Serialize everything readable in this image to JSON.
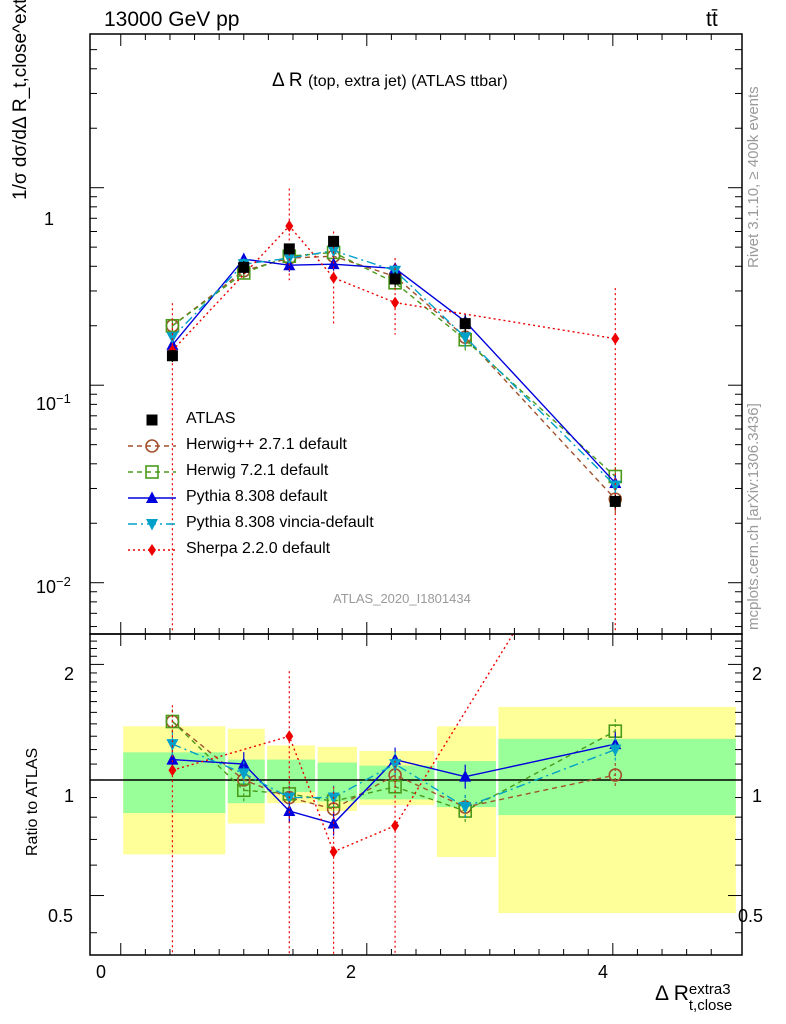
{
  "header": {
    "energy_label": "13000 GeV pp",
    "process_label": "tt̄",
    "analysis_id": "ATLAS_2020_I1801434",
    "rivet_label": "Rivet 3.1.10, ≥ 400k events",
    "mcplots_label": "mcplots.cern.ch [arXiv:1306.3436]"
  },
  "chart_data": {
    "type": "line",
    "title": "Δ R (top, extra jet) (ATLAS ttbar)",
    "title_main": "Δ R",
    "title_rest": "(top, extra jet) (ATLAS ttbar)",
    "ylabel_main": "1/σ dσ/dΔ R_t,close^extra3",
    "ylabel_ratio": "Ratio to ATLAS",
    "xlabel_main": "Δ R",
    "xlabel_sup": "extra3",
    "xlabel_sub": "t,close",
    "x_range": [
      -0.25,
      5.05
    ],
    "main_yrange": [
      0.0055,
      6.0
    ],
    "main_yscale": "log",
    "ratio_yrange": [
      0.35,
      2.4
    ],
    "ratio_ytick_labels": [
      "0.5",
      "1",
      "2"
    ],
    "ratio_yticks": [
      0.5,
      1,
      2
    ],
    "x_tick_labels": [
      "0",
      "2",
      "4"
    ],
    "x_ticks": [
      0,
      2,
      4
    ],
    "main_ytick_labels": [
      "10^-2",
      "10^-1",
      "1"
    ],
    "legend_position": "lower-left",
    "bins": [
      0.0,
      0.85,
      1.17,
      1.58,
      1.92,
      2.55,
      3.05,
      5.0
    ],
    "x": [
      0.42,
      1.0,
      1.37,
      1.73,
      2.23,
      2.8,
      4.02
    ],
    "data": {
      "name": "ATLAS",
      "values": [
        0.141,
        0.395,
        0.49,
        0.535,
        0.345,
        0.205,
        0.0258
      ],
      "errors": [
        0.01,
        0.03,
        0.03,
        0.035,
        0.03,
        0.02,
        0.002
      ]
    },
    "series": [
      {
        "name": "Herwig++ 2.7.1 default",
        "color": "#a0522d",
        "dash": "5,4",
        "marker": "circle-open",
        "values": [
          0.2,
          0.38,
          0.44,
          0.45,
          0.355,
          0.175,
          0.0265
        ],
        "errors": [
          0.015,
          0.025,
          0.03,
          0.03,
          0.025,
          0.02,
          0.004
        ]
      },
      {
        "name": "Herwig 7.2.1 default",
        "color": "#4a9a1c",
        "dash": "5,4",
        "marker": "square-open",
        "values": [
          0.2,
          0.37,
          0.45,
          0.47,
          0.33,
          0.17,
          0.0345
        ],
        "errors": [
          0.015,
          0.025,
          0.03,
          0.03,
          0.025,
          0.02,
          0.004
        ]
      },
      {
        "name": "Pythia 8.308 default",
        "color": "#0000dd",
        "dash": "",
        "marker": "triangle-up",
        "values": [
          0.16,
          0.435,
          0.405,
          0.41,
          0.39,
          0.21,
          0.032
        ],
        "errors": [
          0.01,
          0.03,
          0.03,
          0.03,
          0.025,
          0.02,
          0.003
        ]
      },
      {
        "name": "Pythia 8.308 vincia-default",
        "color": "#00a0c8",
        "dash": "9,4,2,4",
        "marker": "triangle-down",
        "values": [
          0.175,
          0.41,
          0.44,
          0.48,
          0.38,
          0.175,
          0.031
        ],
        "errors": [
          0.012,
          0.03,
          0.03,
          0.03,
          0.025,
          0.02,
          0.003
        ]
      },
      {
        "name": "Sherpa 2.2.0 default",
        "color": "#ee0000",
        "dash": "2,3",
        "marker": "diamond",
        "values": [
          0.15,
          0.0,
          0.64,
          0.35,
          0.262,
          0.0,
          0.172
        ],
        "points_x": [
          0.42,
          1.37,
          1.73,
          2.23,
          4.02
        ],
        "points_y": [
          0.15,
          0.64,
          0.35,
          0.262,
          0.172
        ],
        "err_lo": [
          0.0,
          0.34,
          0.2,
          0.18,
          0.0
        ],
        "err_hi": [
          0.26,
          0.99,
          0.6,
          0.44,
          0.31
        ]
      }
    ],
    "ratio": {
      "band_green": [
        [
          0.82,
          1.18
        ],
        [
          0.87,
          1.13
        ],
        [
          0.93,
          1.13
        ],
        [
          0.88,
          1.11
        ],
        [
          0.89,
          1.09
        ],
        [
          0.85,
          1.12
        ],
        [
          0.81,
          1.28
        ]
      ],
      "band_yellow": [
        [
          0.64,
          1.38
        ],
        [
          0.77,
          1.36
        ],
        [
          0.87,
          1.23
        ],
        [
          0.83,
          1.22
        ],
        [
          0.86,
          1.19
        ],
        [
          0.63,
          1.38
        ],
        [
          0.45,
          1.55
        ]
      ],
      "series_values": [
        [
          1.42,
          1.0,
          0.9,
          0.84,
          1.03,
          0.85,
          1.03
        ],
        [
          1.42,
          0.94,
          0.92,
          0.88,
          0.96,
          0.83,
          1.34
        ],
        [
          1.13,
          1.1,
          0.83,
          0.77,
          1.13,
          1.02,
          1.24
        ],
        [
          1.24,
          1.04,
          0.9,
          0.9,
          1.1,
          0.85,
          1.2
        ],
        [
          1.06,
          0.0,
          1.3,
          0.65,
          0.76,
          0.0,
          6.5
        ]
      ]
    }
  }
}
